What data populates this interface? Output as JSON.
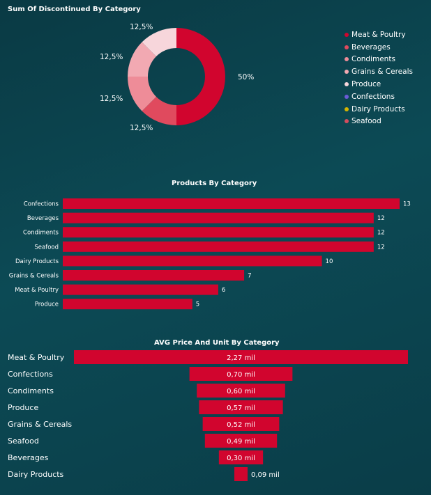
{
  "charts": {
    "donut": {
      "title": "Sum Of Discontinued By Category",
      "label_50": "50%",
      "label_left_1": "12,5%",
      "label_left_2": "12,5%",
      "label_left_3": "12,5%",
      "label_left_4": "12,5%",
      "label_top": "12,5%"
    },
    "products": {
      "title": "Products By Category"
    },
    "funnel": {
      "title": "AVG Price And Unit By Category"
    }
  },
  "chart_data": [
    {
      "type": "pie",
      "title": "Sum Of Discontinued By Category",
      "categories": [
        "Meat & Poultry",
        "Beverages",
        "Condiments",
        "Grains & Cereals",
        "Produce",
        "Confections",
        "Dairy Products",
        "Seafood"
      ],
      "values": [
        50,
        12.5,
        12.5,
        12.5,
        12.5,
        0,
        0,
        0
      ],
      "labels": [
        "50%",
        "12,5%",
        "12,5%",
        "12,5%",
        "12,5%",
        "",
        "",
        ""
      ],
      "colors": [
        "#d1052e",
        "#e04a5e",
        "#ee8c98",
        "#f2a9b2",
        "#f7d6db",
        "#6b5bd6",
        "#d6b400",
        "#d44d5e"
      ],
      "legend": "right"
    },
    {
      "type": "bar",
      "orientation": "horizontal",
      "title": "Products By Category",
      "categories": [
        "Confections",
        "Beverages",
        "Condiments",
        "Seafood",
        "Dairy Products",
        "Grains & Cereals",
        "Meat & Poultry",
        "Produce"
      ],
      "values": [
        13,
        12,
        12,
        12,
        10,
        7,
        6,
        5
      ],
      "color": "#d1052e"
    },
    {
      "type": "bar",
      "subtype": "funnel",
      "title": "AVG Price And Unit By Category",
      "categories": [
        "Meat & Poultry",
        "Confections",
        "Condiments",
        "Produce",
        "Grains & Cereals",
        "Seafood",
        "Beverages",
        "Dairy Products"
      ],
      "values": [
        2270,
        700,
        600,
        570,
        520,
        490,
        300,
        90
      ],
      "labels": [
        "2,27 mil",
        "0,70 mil",
        "0,60 mil",
        "0,57 mil",
        "0,52 mil",
        "0,49 mil",
        "0,30 mil",
        "0,09 mil"
      ],
      "color": "#d1052e"
    }
  ]
}
